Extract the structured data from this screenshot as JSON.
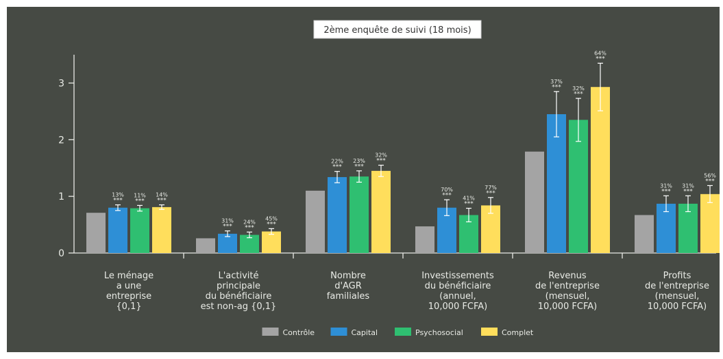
{
  "chart_data": {
    "type": "bar",
    "title": "2ème enquête de suivi (18 mois)",
    "ylim": [
      0,
      3.5
    ],
    "yticks": [
      "0",
      "1",
      "2",
      "3"
    ],
    "grid": false,
    "legend_position": "bottom",
    "categories": [
      [
        "Le ménage",
        "a une",
        "entreprise",
        "{0,1}"
      ],
      [
        "L'activité",
        "principale",
        "du bénéficiaire",
        "est non-ag {0,1}"
      ],
      [
        "Nombre",
        "d'AGR",
        "familiales"
      ],
      [
        "Investissements",
        "du bénéficiaire",
        "(annuel,",
        "10,000 FCFA)"
      ],
      [
        "Revenus",
        "de l'entreprise",
        "(mensuel,",
        "10,000 FCFA)"
      ],
      [
        "Profits",
        "de l'entreprise",
        "(mensuel,",
        "10,000 FCFA)"
      ]
    ],
    "series": [
      {
        "name": "Contrôle",
        "color": "#a4a4a4",
        "values": [
          0.71,
          0.26,
          1.1,
          0.47,
          1.79,
          0.67
        ],
        "error": null,
        "pct": [
          "",
          "",
          "",
          "",
          "",
          ""
        ],
        "stars": [
          "",
          "",
          "",
          "",
          "",
          ""
        ]
      },
      {
        "name": "Capital",
        "color": "#2e8fd6",
        "values": [
          0.8,
          0.34,
          1.34,
          0.8,
          2.45,
          0.87
        ],
        "error": [
          0.05,
          0.05,
          0.1,
          0.14,
          0.4,
          0.14
        ],
        "pct": [
          "13%",
          "31%",
          "22%",
          "70%",
          "37%",
          "31%"
        ],
        "stars": [
          "***",
          "***",
          "***",
          "***",
          "***",
          "***"
        ]
      },
      {
        "name": "Psychosocial",
        "color": "#2fbf71",
        "values": [
          0.79,
          0.32,
          1.35,
          0.67,
          2.35,
          0.87
        ],
        "error": [
          0.05,
          0.05,
          0.1,
          0.12,
          0.38,
          0.14
        ],
        "pct": [
          "11%",
          "24%",
          "23%",
          "41%",
          "32%",
          "31%"
        ],
        "stars": [
          "***",
          "***",
          "***",
          "***",
          "***",
          "***"
        ]
      },
      {
        "name": "Complet",
        "color": "#ffde5c",
        "values": [
          0.81,
          0.38,
          1.45,
          0.84,
          2.93,
          1.04
        ],
        "error": [
          0.04,
          0.05,
          0.1,
          0.14,
          0.42,
          0.15
        ],
        "pct": [
          "14%",
          "45%",
          "32%",
          "77%",
          "64%",
          "56%"
        ],
        "stars": [
          "***",
          "***",
          "***",
          "***",
          "***",
          "***"
        ]
      }
    ]
  }
}
